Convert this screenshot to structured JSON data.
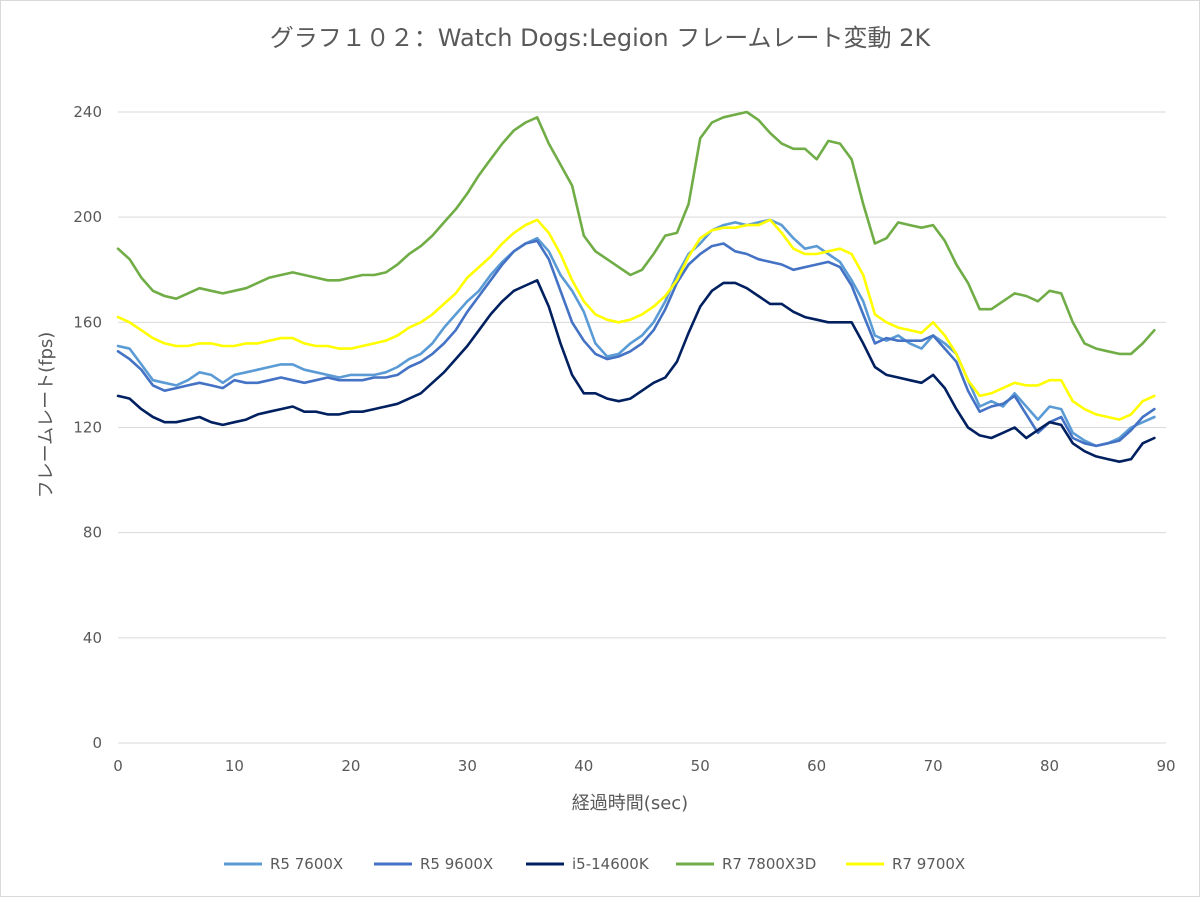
{
  "chart_data": {
    "type": "line",
    "title": "グラフ１０２：Watch Dogs:Legion フレームレート変動 2K",
    "xlabel": "経過時間(sec)",
    "ylabel": "フレームレート(fps)",
    "xlim": [
      0,
      90
    ],
    "ylim": [
      0,
      240
    ],
    "xticks": [
      0,
      10,
      20,
      30,
      40,
      50,
      60,
      70,
      80,
      90
    ],
    "yticks": [
      0,
      40,
      80,
      120,
      160,
      200,
      240
    ],
    "grid": "horizontal",
    "legend_position": "bottom",
    "x": [
      0,
      1,
      2,
      3,
      4,
      5,
      6,
      7,
      8,
      9,
      10,
      11,
      12,
      13,
      14,
      15,
      16,
      17,
      18,
      19,
      20,
      21,
      22,
      23,
      24,
      25,
      26,
      27,
      28,
      29,
      30,
      31,
      32,
      33,
      34,
      35,
      36,
      37,
      38,
      39,
      40,
      41,
      42,
      43,
      44,
      45,
      46,
      47,
      48,
      49,
      50,
      51,
      52,
      53,
      54,
      55,
      56,
      57,
      58,
      59,
      60,
      61,
      62,
      63,
      64,
      65,
      66,
      67,
      68,
      69,
      70,
      71,
      72,
      73,
      74,
      75,
      76,
      77,
      78,
      79,
      80,
      81,
      82,
      83,
      84,
      85,
      86,
      87,
      88,
      89
    ],
    "series": [
      {
        "name": "R5 7600X",
        "color": "#5b9bd5",
        "values": [
          151,
          150,
          144,
          138,
          137,
          136,
          138,
          141,
          140,
          137,
          140,
          141,
          142,
          143,
          144,
          144,
          142,
          141,
          140,
          139,
          140,
          140,
          140,
          141,
          143,
          146,
          148,
          152,
          158,
          163,
          168,
          172,
          178,
          183,
          187,
          190,
          192,
          187,
          178,
          172,
          164,
          152,
          147,
          148,
          152,
          155,
          160,
          168,
          178,
          186,
          190,
          195,
          197,
          198,
          197,
          198,
          199,
          197,
          192,
          188,
          189,
          186,
          183,
          176,
          168,
          155,
          153,
          155,
          152,
          150,
          155,
          152,
          148,
          138,
          128,
          130,
          128,
          133,
          128,
          123,
          128,
          127,
          118,
          115,
          113,
          114,
          116,
          120,
          122,
          124
        ]
      },
      {
        "name": "R5 9600X",
        "color": "#4472c4",
        "values": [
          149,
          146,
          142,
          136,
          134,
          135,
          136,
          137,
          136,
          135,
          138,
          137,
          137,
          138,
          139,
          138,
          137,
          138,
          139,
          138,
          138,
          138,
          139,
          139,
          140,
          143,
          145,
          148,
          152,
          157,
          164,
          170,
          176,
          182,
          187,
          190,
          191,
          184,
          172,
          160,
          153,
          148,
          146,
          147,
          149,
          152,
          157,
          165,
          175,
          182,
          186,
          189,
          190,
          187,
          186,
          184,
          183,
          182,
          180,
          181,
          182,
          183,
          181,
          174,
          163,
          152,
          154,
          153,
          153,
          153,
          155,
          150,
          145,
          134,
          126,
          128,
          129,
          132,
          125,
          118,
          122,
          124,
          116,
          114,
          113,
          114,
          115,
          119,
          124,
          127
        ]
      },
      {
        "name": "i5-14600K",
        "color": "#002060",
        "values": [
          132,
          131,
          127,
          124,
          122,
          122,
          123,
          124,
          122,
          121,
          122,
          123,
          125,
          126,
          127,
          128,
          126,
          126,
          125,
          125,
          126,
          126,
          127,
          128,
          129,
          131,
          133,
          137,
          141,
          146,
          151,
          157,
          163,
          168,
          172,
          174,
          176,
          166,
          152,
          140,
          133,
          133,
          131,
          130,
          131,
          134,
          137,
          139,
          145,
          156,
          166,
          172,
          175,
          175,
          173,
          170,
          167,
          167,
          164,
          162,
          161,
          160,
          160,
          160,
          152,
          143,
          140,
          139,
          138,
          137,
          140,
          135,
          127,
          120,
          117,
          116,
          118,
          120,
          116,
          119,
          122,
          121,
          114,
          111,
          109,
          108,
          107,
          108,
          114,
          116
        ]
      },
      {
        "name": "R7 7800X3D",
        "color": "#70ad47",
        "values": [
          188,
          184,
          177,
          172,
          170,
          169,
          171,
          173,
          172,
          171,
          172,
          173,
          175,
          177,
          178,
          179,
          178,
          177,
          176,
          176,
          177,
          178,
          178,
          179,
          182,
          186,
          189,
          193,
          198,
          203,
          209,
          216,
          222,
          228,
          233,
          236,
          238,
          228,
          220,
          212,
          193,
          187,
          184,
          181,
          178,
          180,
          186,
          193,
          194,
          205,
          230,
          236,
          238,
          239,
          240,
          237,
          232,
          228,
          226,
          226,
          222,
          229,
          228,
          222,
          205,
          190,
          192,
          198,
          197,
          196,
          197,
          191,
          182,
          175,
          165,
          165,
          168,
          171,
          170,
          168,
          172,
          171,
          160,
          152,
          150,
          149,
          148,
          148,
          152,
          157
        ]
      },
      {
        "name": "R7 9700X",
        "color": "#ffff00",
        "values": [
          162,
          160,
          157,
          154,
          152,
          151,
          151,
          152,
          152,
          151,
          151,
          152,
          152,
          153,
          154,
          154,
          152,
          151,
          151,
          150,
          150,
          151,
          152,
          153,
          155,
          158,
          160,
          163,
          167,
          171,
          177,
          181,
          185,
          190,
          194,
          197,
          199,
          194,
          186,
          176,
          168,
          163,
          161,
          160,
          161,
          163,
          166,
          170,
          176,
          185,
          192,
          195,
          196,
          196,
          197,
          197,
          199,
          194,
          188,
          186,
          186,
          187,
          188,
          186,
          178,
          163,
          160,
          158,
          157,
          156,
          160,
          155,
          148,
          138,
          132,
          133,
          135,
          137,
          136,
          136,
          138,
          138,
          130,
          127,
          125,
          124,
          123,
          125,
          130,
          132
        ]
      }
    ]
  }
}
